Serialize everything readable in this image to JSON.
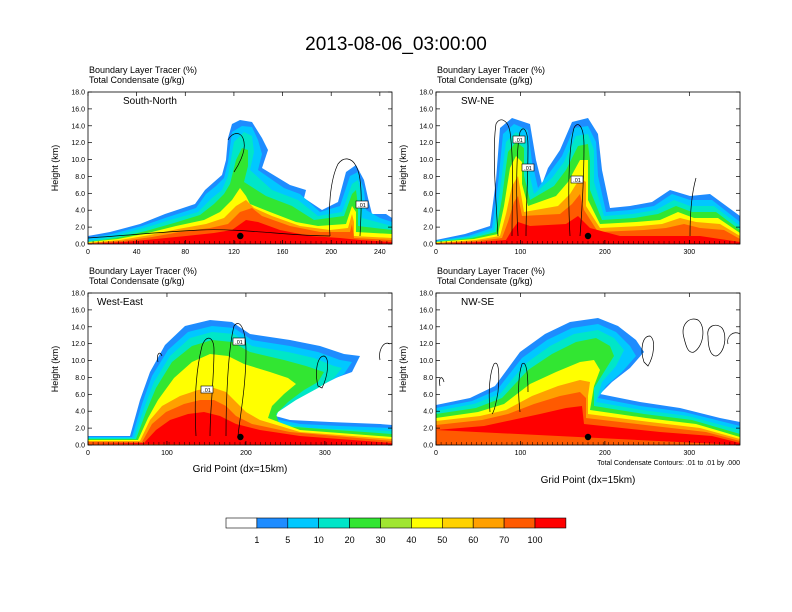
{
  "figure": {
    "title": "2013-08-06_03:00:00",
    "panel_label_line1": "Boundary Layer Tracer   (%)",
    "panel_label_line2": "Total Condensate   (g/kg)",
    "contour_note": "Total Condensate Contours: .01 to .01 by .000",
    "colorbar_labels": [
      "1",
      "5",
      "10",
      "20",
      "30",
      "40",
      "50",
      "60",
      "70",
      "100"
    ],
    "colorbar_colors": [
      "#ffffff",
      "#1e8cff",
      "#00c8ff",
      "#00e6c8",
      "#32e632",
      "#a0e632",
      "#ffff00",
      "#ffd200",
      "#ffa000",
      "#ff5a00",
      "#ff0000"
    ],
    "contour_label": ".01"
  },
  "chart_data": [
    {
      "type": "heatmap",
      "title": "South-North",
      "xlabel": "",
      "ylabel": "Height (km)",
      "xlim": [
        0,
        250
      ],
      "ylim": [
        0,
        18
      ],
      "xticks": [
        "0",
        "40",
        "80",
        "120",
        "160",
        "200",
        "240"
      ],
      "yticks": [
        "0.0",
        "2.0",
        "4.0",
        "6.0",
        "8.0",
        "10.0",
        "12.0",
        "14.0",
        "16.0",
        "18.0"
      ],
      "grid": false,
      "marker_x": 124
    },
    {
      "type": "heatmap",
      "title": "SW-NE",
      "xlabel": "",
      "ylabel": "Height (km)",
      "xlim": [
        0,
        360
      ],
      "ylim": [
        0,
        18
      ],
      "xticks": [
        "0",
        "100",
        "200",
        "300"
      ],
      "yticks": [
        "0.0",
        "2.0",
        "4.0",
        "6.0",
        "8.0",
        "10.0",
        "12.0",
        "14.0",
        "16.0",
        "18.0"
      ],
      "grid": false,
      "marker_x": 180
    },
    {
      "type": "heatmap",
      "title": "West-East",
      "xlabel": "Grid Point (dx=15km)",
      "ylabel": "Height (km)",
      "xlim": [
        0,
        385
      ],
      "ylim": [
        0,
        18
      ],
      "xticks": [
        "0",
        "100",
        "200",
        "300"
      ],
      "yticks": [
        "0.0",
        "2.0",
        "4.0",
        "6.0",
        "8.0",
        "10.0",
        "12.0",
        "14.0",
        "16.0",
        "18.0"
      ],
      "grid": false,
      "marker_x": 193
    },
    {
      "type": "heatmap",
      "title": "NW-SE",
      "xlabel": "Grid Point (dx=15km)",
      "ylabel": "Height (km)",
      "xlim": [
        0,
        360
      ],
      "ylim": [
        0,
        18
      ],
      "xticks": [
        "0",
        "100",
        "200",
        "300"
      ],
      "yticks": [
        "0.0",
        "2.0",
        "4.0",
        "6.0",
        "8.0",
        "10.0",
        "12.0",
        "14.0",
        "16.0",
        "18.0"
      ],
      "grid": false,
      "marker_x": 180
    }
  ]
}
